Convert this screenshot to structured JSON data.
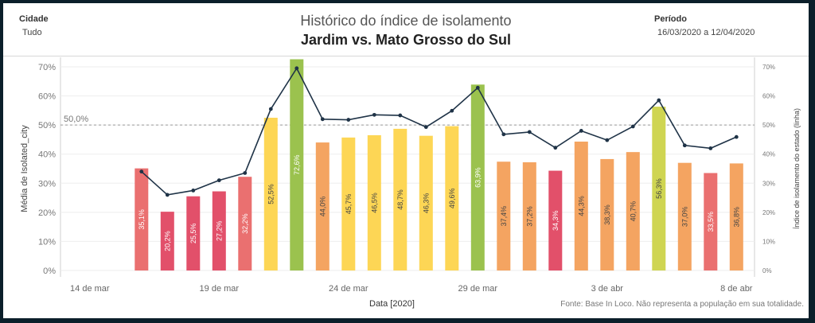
{
  "filters": {
    "cidade_label": "Cidade",
    "cidade_value": "Tudo",
    "periodo_label": "Período",
    "periodo_value": "16/03/2020 a 12/04/2020"
  },
  "title": "Histórico do índice de isolamento",
  "subtitle": "Jardim vs. Mato Grosso do Sul",
  "footnote": "Fonte: Base In Loco. Não representa a população em sua totalidade.",
  "chart_data": {
    "type": "bar",
    "xlabel": "Data [2020]",
    "ylabel_left": "Média de Isolated_city",
    "ylabel_right": "Índice de isolamento do estado (linha)",
    "ylim": [
      0,
      70
    ],
    "y_ticks": [
      "0%",
      "10%",
      "20%",
      "30%",
      "40%",
      "50%",
      "60%",
      "70%"
    ],
    "x_ticks": [
      {
        "label": "14 de mar",
        "date": "2020-03-14"
      },
      {
        "label": "19 de mar",
        "date": "2020-03-19"
      },
      {
        "label": "24 de mar",
        "date": "2020-03-24"
      },
      {
        "label": "29 de mar",
        "date": "2020-03-29"
      },
      {
        "label": "3 de abr",
        "date": "2020-04-03"
      },
      {
        "label": "8 de abr",
        "date": "2020-04-08"
      }
    ],
    "reference_line": {
      "value": 50,
      "label": "50,0%"
    },
    "grid": true,
    "series": [
      {
        "name": "Média de Isolated_city",
        "kind": "bar",
        "x": [
          "2020-03-16",
          "2020-03-17",
          "2020-03-18",
          "2020-03-19",
          "2020-03-20",
          "2020-03-21",
          "2020-03-22",
          "2020-03-23",
          "2020-03-24",
          "2020-03-25",
          "2020-03-26",
          "2020-03-27",
          "2020-03-28",
          "2020-03-29",
          "2020-03-30",
          "2020-03-31",
          "2020-04-01",
          "2020-04-02",
          "2020-04-03",
          "2020-04-04",
          "2020-04-05",
          "2020-04-06",
          "2020-04-07",
          "2020-04-08"
        ],
        "values": [
          35.1,
          20.2,
          25.5,
          27.2,
          32.2,
          52.5,
          72.6,
          44.0,
          45.7,
          46.5,
          48.7,
          46.3,
          49.6,
          63.9,
          37.4,
          37.2,
          34.3,
          44.3,
          38.3,
          40.7,
          56.3,
          37.0,
          33.5,
          36.8
        ],
        "labels": [
          "35,1%",
          "20,2%",
          "25,5%",
          "27,2%",
          "32,2%",
          "52,5%",
          "72,6%",
          "44,0%",
          "45,7%",
          "46,5%",
          "48,7%",
          "46,3%",
          "49,6%",
          "63,9%",
          "37,4%",
          "37,2%",
          "34,3%",
          "44,3%",
          "38,3%",
          "40,7%",
          "56,3%",
          "37,0%",
          "33,5%",
          "36,8%"
        ],
        "colors": [
          "#ea7070",
          "#e2506a",
          "#e2506a",
          "#e2506a",
          "#ea7070",
          "#fdd655",
          "#9bc24e",
          "#f4a461",
          "#fdd655",
          "#fdd655",
          "#fdd655",
          "#fdd655",
          "#fdd655",
          "#9bc24e",
          "#f4a461",
          "#f4a461",
          "#e2506a",
          "#f4a461",
          "#f4a461",
          "#f4a461",
          "#cfd552",
          "#f4a461",
          "#ea7070",
          "#f4a461"
        ]
      },
      {
        "name": "Índice de isolamento do estado (linha)",
        "kind": "line",
        "color": "#1f3347",
        "x": [
          "2020-03-16",
          "2020-03-17",
          "2020-03-18",
          "2020-03-19",
          "2020-03-20",
          "2020-03-21",
          "2020-03-22",
          "2020-03-23",
          "2020-03-24",
          "2020-03-25",
          "2020-03-26",
          "2020-03-27",
          "2020-03-28",
          "2020-03-29",
          "2020-03-30",
          "2020-03-31",
          "2020-04-01",
          "2020-04-02",
          "2020-04-03",
          "2020-04-04",
          "2020-04-05",
          "2020-04-06",
          "2020-04-07",
          "2020-04-08"
        ],
        "values": [
          34,
          26,
          27.5,
          31,
          33.5,
          55.5,
          69.5,
          52,
          51.8,
          53.5,
          53.3,
          49.3,
          54.9,
          62.8,
          46.8,
          47.6,
          42.2,
          48,
          44.8,
          49.5,
          58.5,
          43,
          42,
          45.9
        ]
      }
    ]
  }
}
